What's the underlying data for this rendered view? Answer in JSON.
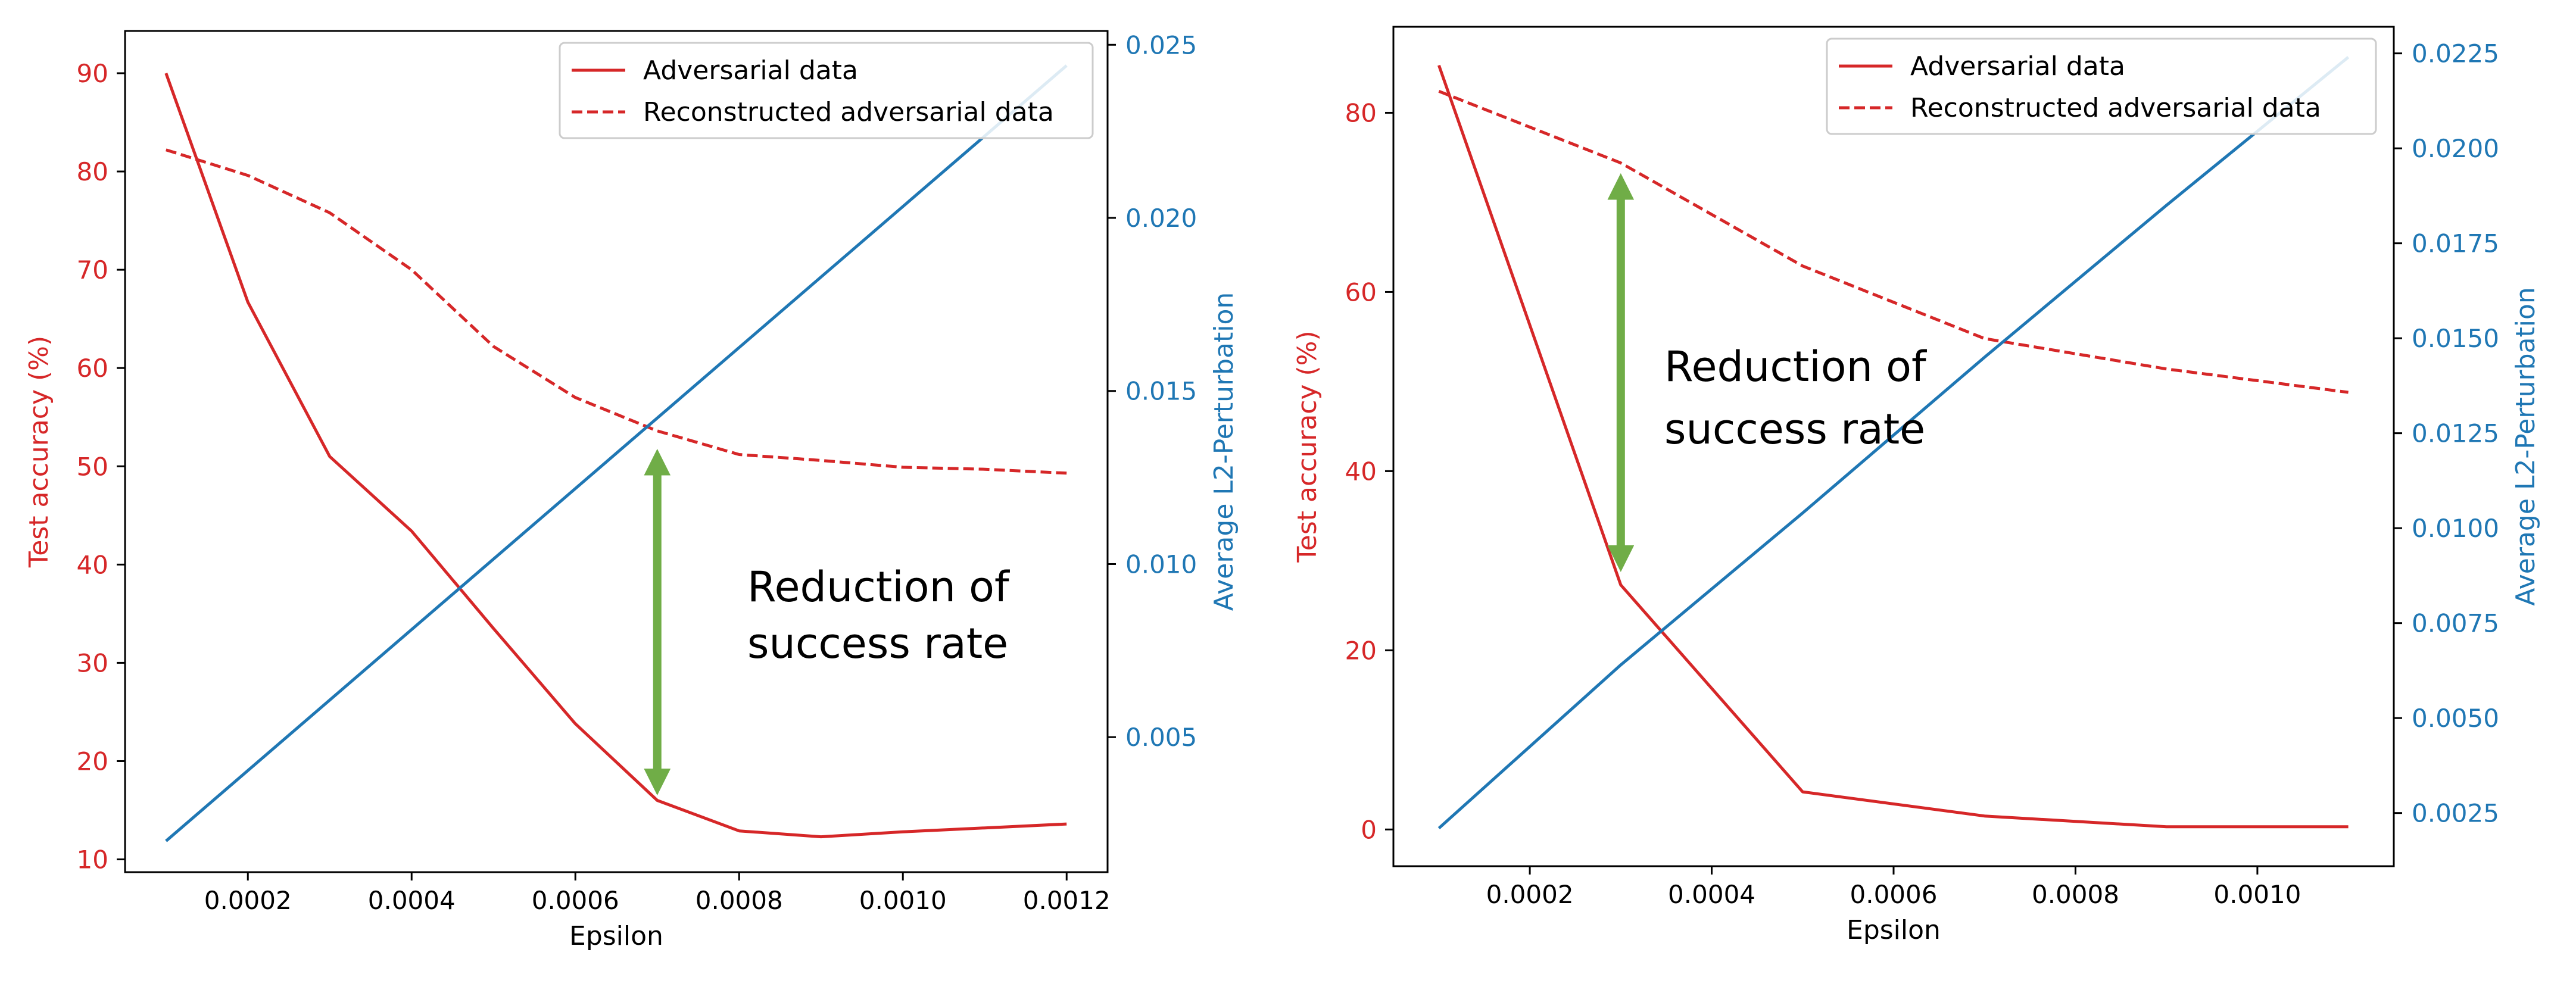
{
  "colors": {
    "adv": "#d62728",
    "l2": "#1f77b4",
    "arrow": "#70ad47",
    "axis": "#000000"
  },
  "chart_data": [
    {
      "type": "line",
      "xlabel": "Epsilon",
      "ylabel_left": "Test accuracy (%)",
      "ylabel_right": "Average L2-Perturbation",
      "xlim": [
        5e-05,
        0.00125
      ],
      "ylim_left": [
        8.7,
        94.3
      ],
      "ylim_right": [
        0.0011,
        0.0254
      ],
      "x_ticks": [
        0.0002,
        0.0004,
        0.0006,
        0.0008,
        0.001,
        0.0012
      ],
      "x_tick_labels": [
        "0.0002",
        "0.0004",
        "0.0006",
        "0.0008",
        "0.0010",
        "0.0012"
      ],
      "y_left_ticks": [
        10,
        20,
        30,
        40,
        50,
        60,
        70,
        80,
        90
      ],
      "y_left_tick_labels": [
        "10",
        "20",
        "30",
        "40",
        "50",
        "60",
        "70",
        "80",
        "90"
      ],
      "y_right_ticks": [
        0.005,
        0.01,
        0.015,
        0.02,
        0.025
      ],
      "y_right_tick_labels": [
        "0.005",
        "0.010",
        "0.015",
        "0.020",
        "0.025"
      ],
      "legend": {
        "placement": "top-right",
        "entries": [
          "Adversarial data",
          "Reconstructed adversarial data"
        ]
      },
      "series": [
        {
          "name": "Adversarial data",
          "axis": "left",
          "style": "solid",
          "color": "#d62728",
          "x": [
            0.0001,
            0.0002,
            0.0003,
            0.0004,
            0.0005,
            0.0006,
            0.0007,
            0.0008,
            0.0009,
            0.001,
            0.0011,
            0.0012
          ],
          "values": [
            90.0,
            66.7,
            51.0,
            43.4,
            33.5,
            23.8,
            16.0,
            12.9,
            12.3,
            12.8,
            13.2,
            13.6
          ]
        },
        {
          "name": "Reconstructed adversarial data",
          "axis": "left",
          "style": "dashed",
          "color": "#d62728",
          "x": [
            0.0001,
            0.0002,
            0.0003,
            0.0004,
            0.0005,
            0.0006,
            0.0007,
            0.0008,
            0.0009,
            0.001,
            0.0011,
            0.0012
          ],
          "values": [
            82.2,
            79.6,
            75.8,
            70.0,
            62.2,
            57.0,
            53.6,
            51.2,
            50.6,
            49.9,
            49.7,
            49.3
          ]
        },
        {
          "axis": "right",
          "style": "solid",
          "color": "#1f77b4",
          "x": [
            0.0001,
            0.0012
          ],
          "values": [
            0.002,
            0.0244
          ]
        }
      ],
      "annotation": {
        "lines": [
          "Reduction of",
          "success rate"
        ],
        "arrow": {
          "x": 0.0007,
          "from": 16.3,
          "to": 52.0
        }
      }
    },
    {
      "type": "line",
      "xlabel": "Epsilon",
      "ylabel_left": "Test accuracy (%)",
      "ylabel_right": "Average L2-Perturbation",
      "xlim": [
        5e-05,
        0.00115
      ],
      "ylim_left": [
        -4.1,
        89.6
      ],
      "ylim_right": [
        0.0011,
        0.0232
      ],
      "x_ticks": [
        0.0002,
        0.0004,
        0.0006,
        0.0008,
        0.001
      ],
      "x_tick_labels": [
        "0.0002",
        "0.0004",
        "0.0006",
        "0.0008",
        "0.0010"
      ],
      "y_left_ticks": [
        0,
        20,
        40,
        60,
        80
      ],
      "y_left_tick_labels": [
        "0",
        "20",
        "40",
        "60",
        "80"
      ],
      "y_right_ticks": [
        0.0025,
        0.005,
        0.0075,
        0.01,
        0.0125,
        0.015,
        0.0175,
        0.02,
        0.0225
      ],
      "y_right_tick_labels": [
        "0.0025",
        "0.0050",
        "0.0075",
        "0.0100",
        "0.0125",
        "0.0150",
        "0.0175",
        "0.0200",
        "0.0225"
      ],
      "legend": {
        "placement": "top-right",
        "entries": [
          "Adversarial data",
          "Reconstructed adversarial data"
        ]
      },
      "series": [
        {
          "name": "Adversarial data",
          "axis": "left",
          "style": "solid",
          "color": "#d62728",
          "x": [
            0.0001,
            0.0003,
            0.0005,
            0.0007,
            0.0009,
            0.0011
          ],
          "values": [
            85.3,
            27.3,
            4.2,
            1.5,
            0.3,
            0.3
          ]
        },
        {
          "name": "Reconstructed adversarial data",
          "axis": "left",
          "style": "dashed",
          "color": "#d62728",
          "x": [
            0.0001,
            0.0003,
            0.0005,
            0.0007,
            0.0009,
            0.0011
          ],
          "values": [
            82.4,
            74.4,
            62.9,
            54.8,
            51.4,
            48.8
          ]
        },
        {
          "axis": "right",
          "style": "solid",
          "color": "#1f77b4",
          "x": [
            0.0001,
            0.0003,
            0.0005,
            0.0007,
            0.0009,
            0.0011
          ],
          "values": [
            0.0021,
            0.0064,
            0.0104,
            0.0145,
            0.0185,
            0.0224
          ]
        }
      ],
      "annotation": {
        "lines": [
          "Reduction of",
          "success rate"
        ],
        "arrow": {
          "x": 0.0003,
          "from": 28.5,
          "to": 73.5
        }
      }
    }
  ]
}
